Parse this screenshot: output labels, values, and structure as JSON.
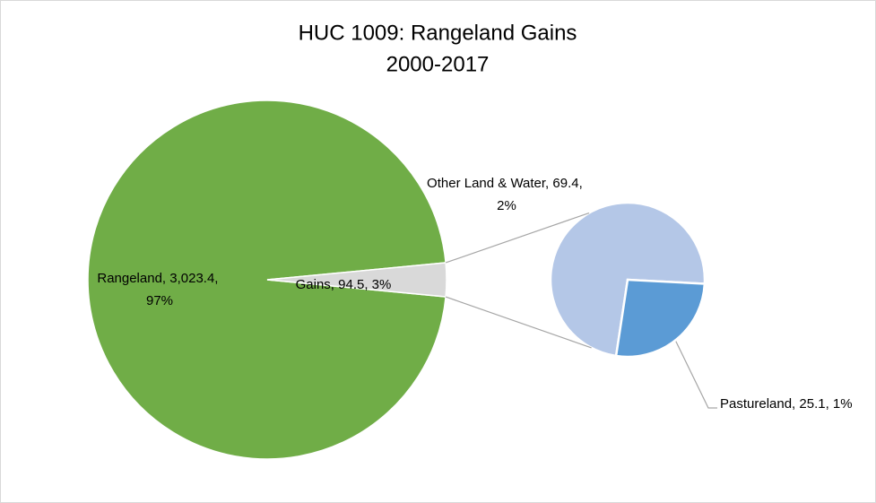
{
  "chart_data": {
    "type": "pie-of-pie",
    "title": "HUC 1009: Rangeland Gains",
    "subtitle": "2000-2017",
    "values": [
      3023.4,
      94.5
    ],
    "value_labels": [
      "Rangeland, 3,023.4, 97%",
      "Gains, 94.5, 3%"
    ],
    "colors": [
      "#70ad47",
      "#d9d9d9"
    ],
    "secondary": {
      "values": [
        69.4,
        25.1
      ],
      "value_labels": [
        "Other Land & Water, 69.4, 2%",
        "Pastureland, 25.1, 1%"
      ],
      "colors": [
        "#b4c7e7",
        "#5b9bd5"
      ]
    }
  }
}
